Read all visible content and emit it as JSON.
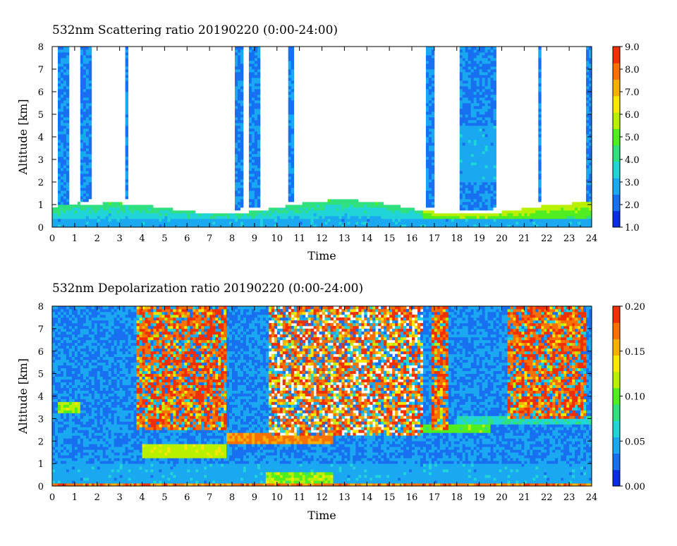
{
  "chart_data": [
    {
      "type": "heatmap",
      "title": "532nm Scattering ratio  20190220 (0:00-24:00)",
      "xlabel": "Time",
      "ylabel": "Altitude [km]",
      "xlim": [
        0,
        24
      ],
      "ylim": [
        0,
        8
      ],
      "x_ticks": [
        "0",
        "1",
        "2",
        "3",
        "4",
        "5",
        "6",
        "7",
        "8",
        "9",
        "10",
        "11",
        "12",
        "13",
        "14",
        "15",
        "16",
        "17",
        "18",
        "19",
        "20",
        "21",
        "22",
        "23",
        "24"
      ],
      "y_ticks": [
        "0",
        "1",
        "2",
        "3",
        "4",
        "5",
        "6",
        "7",
        "8"
      ],
      "colorbar": {
        "range": [
          1.0,
          9.0
        ],
        "ticks": [
          "1.0",
          "2.0",
          "3.0",
          "4.0",
          "5.0",
          "6.0",
          "7.0",
          "8.0",
          "9.0"
        ],
        "colors": [
          "#0a2ee6",
          "#1870f0",
          "#1aa8f0",
          "#20d4d8",
          "#30e080",
          "#50ee20",
          "#b8f000",
          "#f8e800",
          "#f8b000",
          "#f87000",
          "#f03000"
        ]
      },
      "grid": false
    },
    {
      "type": "heatmap",
      "title": "532nm Depolarization ratio  20190220 (0:00-24:00)",
      "xlabel": "Time",
      "ylabel": "Altitude [km]",
      "xlim": [
        0,
        24
      ],
      "ylim": [
        0,
        8
      ],
      "x_ticks": [
        "0",
        "1",
        "2",
        "3",
        "4",
        "5",
        "6",
        "7",
        "8",
        "9",
        "10",
        "11",
        "12",
        "13",
        "14",
        "15",
        "16",
        "17",
        "18",
        "19",
        "20",
        "21",
        "22",
        "23",
        "24"
      ],
      "y_ticks": [
        "0",
        "1",
        "2",
        "3",
        "4",
        "5",
        "6",
        "7",
        "8"
      ],
      "colorbar": {
        "range": [
          0.0,
          0.2
        ],
        "ticks": [
          "0.00",
          "0.05",
          "0.10",
          "0.15",
          "0.20"
        ],
        "colors": [
          "#0a2ee6",
          "#1870f0",
          "#1aa8f0",
          "#20d4d8",
          "#30e080",
          "#50ee20",
          "#b8f000",
          "#f8e800",
          "#f8b000",
          "#f87000",
          "#f03000"
        ]
      },
      "grid": false
    }
  ]
}
